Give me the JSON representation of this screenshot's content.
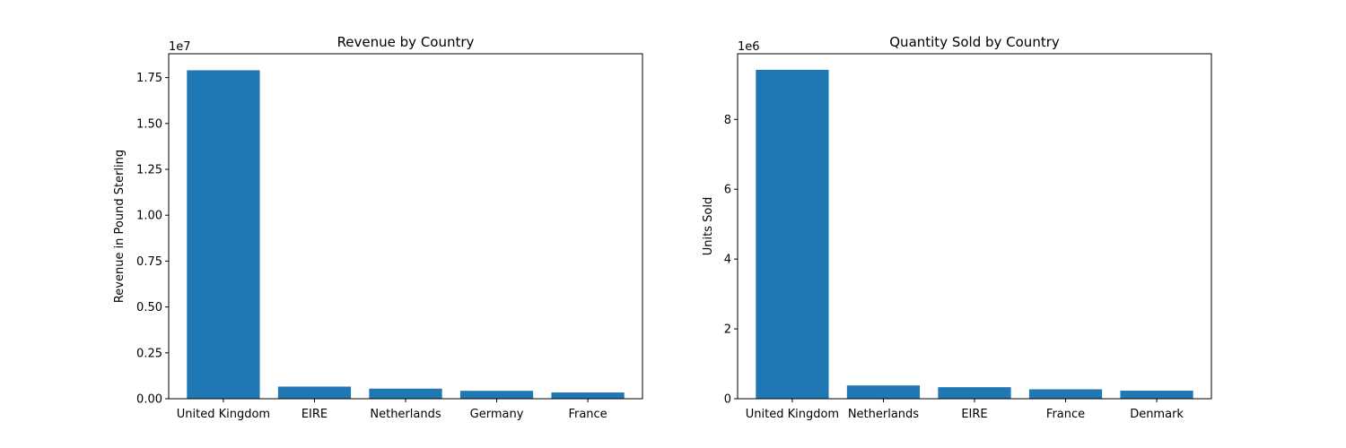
{
  "chart_data": [
    {
      "type": "bar",
      "title": "Revenue by Country",
      "xlabel": "",
      "ylabel": "Revenue in Pound Sterling",
      "offset_label": "1e7",
      "categories": [
        "United Kingdom",
        "EIRE",
        "Netherlands",
        "Germany",
        "France"
      ],
      "values": [
        17900000,
        660000,
        550000,
        430000,
        340000
      ],
      "ylim": [
        0,
        18800000
      ],
      "yticks": [
        0,
        2500000,
        5000000,
        7500000,
        10000000,
        12500000,
        15000000,
        17500000
      ],
      "ytick_labels": [
        "0.00",
        "0.25",
        "0.50",
        "0.75",
        "1.00",
        "1.25",
        "1.50",
        "1.75"
      ],
      "grid": false,
      "color": "#1f77b4"
    },
    {
      "type": "bar",
      "title": "Quantity Sold by Country",
      "xlabel": "",
      "ylabel": "Units Sold",
      "offset_label": "1e6",
      "categories": [
        "United Kingdom",
        "Netherlands",
        "EIRE",
        "France",
        "Denmark"
      ],
      "values": [
        9420000,
        380000,
        330000,
        270000,
        230000
      ],
      "ylim": [
        0,
        9880000
      ],
      "yticks": [
        0,
        2000000,
        4000000,
        6000000,
        8000000
      ],
      "ytick_labels": [
        "0",
        "2",
        "4",
        "6",
        "8"
      ],
      "grid": false,
      "color": "#1f77b4"
    }
  ]
}
